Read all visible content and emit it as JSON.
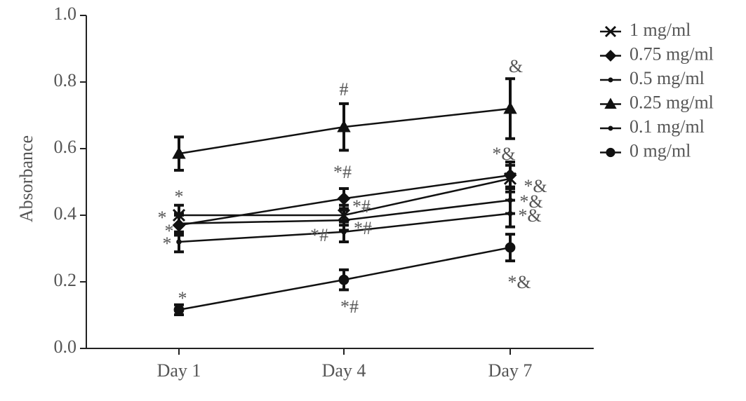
{
  "chart_data": {
    "type": "line",
    "ylabel": "Absorbance",
    "categories": [
      "Day 1",
      "Day 4",
      "Day 7"
    ],
    "ylim": [
      0,
      1
    ],
    "yticks": [
      {
        "value": 0,
        "label": "0.0"
      },
      0.2,
      0.4,
      0.6,
      0.8,
      {
        "value": 1,
        "label": "1.0"
      }
    ],
    "series": [
      {
        "name": "1 mg/ml",
        "marker": "x",
        "color": "#111111",
        "values": [
          0.4,
          0.4,
          0.51
        ],
        "errors": [
          0.03,
          0.03,
          0.04
        ]
      },
      {
        "name": "0.75 mg/ml",
        "marker": "diamond",
        "color": "#111111",
        "values": [
          0.37,
          0.45,
          0.52
        ],
        "errors": [
          0.03,
          0.03,
          0.04
        ]
      },
      {
        "name": "0.5 mg/ml",
        "marker": "dot",
        "color": "#111111",
        "values": [
          0.375,
          0.385,
          0.445
        ],
        "errors": [
          0.03,
          0.03,
          0.04
        ]
      },
      {
        "name": "0.25 mg/ml",
        "marker": "triangle",
        "color": "#111111",
        "values": [
          0.585,
          0.665,
          0.72
        ],
        "errors": [
          0.05,
          0.07,
          0.09
        ]
      },
      {
        "name": "0.1 mg/ml",
        "marker": "dot",
        "color": "#111111",
        "values": [
          0.32,
          0.35,
          0.405
        ],
        "errors": [
          0.03,
          0.03,
          0.04
        ]
      },
      {
        "name": "0 mg/ml",
        "marker": "circle",
        "color": "#111111",
        "values": [
          0.116,
          0.206,
          0.303
        ],
        "errors": [
          0.015,
          0.03,
          0.04
        ]
      }
    ],
    "annotations": [
      "*",
      "*",
      "*",
      "*",
      "*",
      "#",
      "*#",
      "*#",
      "*#",
      "*#",
      "*#",
      "&",
      "*&",
      "*&",
      "*&",
      "*&",
      "*&"
    ]
  }
}
